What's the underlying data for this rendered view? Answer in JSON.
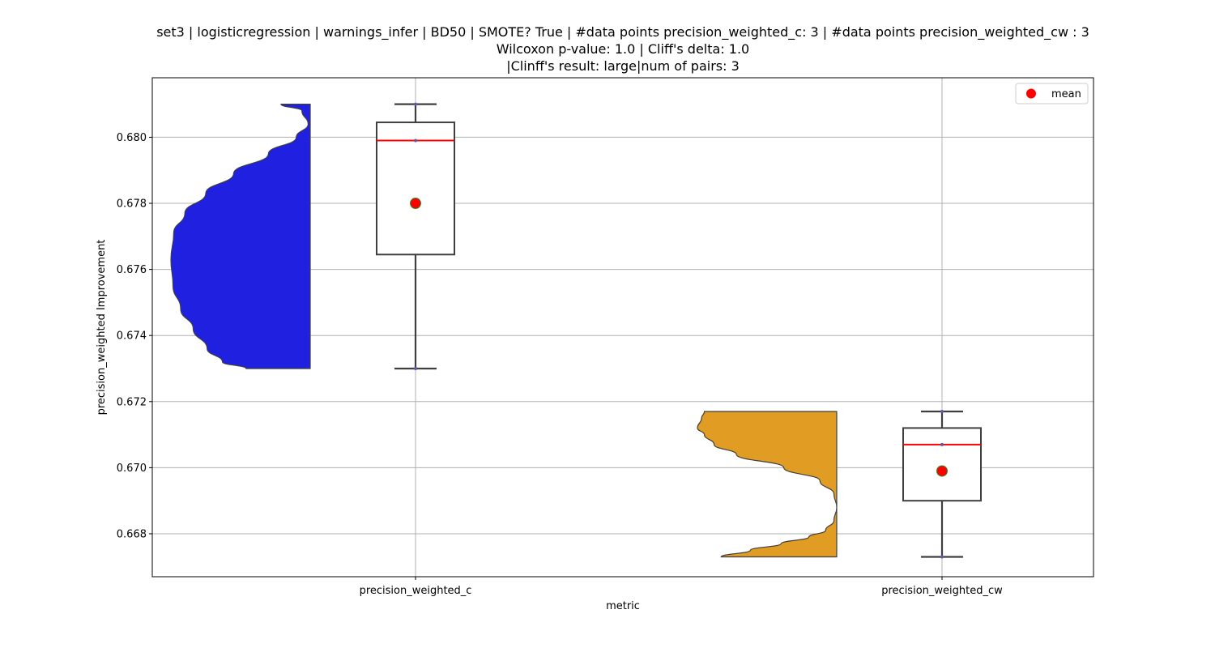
{
  "title_lines": [
    "set3 | logisticregression | warnings_infer | BD50 | SMOTE? True | #data points precision_weighted_c: 3 | #data points precision_weighted_cw : 3",
    "Wilcoxon p-value: 1.0 | Cliff's delta: 1.0",
    "|Clinff's result: large|num of pairs: 3"
  ],
  "chart_data": {
    "type": "violin_box",
    "xlabel": "metric",
    "ylabel": "precision_weighted Improvement",
    "categories": [
      "precision_weighted_c",
      "precision_weighted_cw"
    ],
    "ylim": [
      0.6667,
      0.6818
    ],
    "yticks": [
      0.668,
      0.67,
      0.672,
      0.674,
      0.676,
      0.678,
      0.68
    ],
    "ytick_labels": [
      "0.668",
      "0.670",
      "0.672",
      "0.674",
      "0.676",
      "0.678",
      "0.680"
    ],
    "grid": true,
    "legend": {
      "position": "top-right",
      "entries": [
        {
          "label": "mean",
          "color": "#ff0000",
          "marker": "circle"
        }
      ]
    },
    "series": [
      {
        "category": "precision_weighted_c",
        "violin_color": "#2020e0",
        "points": [
          0.673,
          0.6799,
          0.681
        ],
        "box": {
          "min": 0.673,
          "q1": 0.67645,
          "median": 0.6799,
          "q3": 0.68045,
          "max": 0.681
        },
        "mean": 0.678,
        "violin_profile": [
          [
            0.673,
            0.46
          ],
          [
            0.6732,
            0.63
          ],
          [
            0.6736,
            0.74
          ],
          [
            0.6742,
            0.84
          ],
          [
            0.6748,
            0.93
          ],
          [
            0.6755,
            0.985
          ],
          [
            0.6763,
            1.0
          ],
          [
            0.6771,
            0.98
          ],
          [
            0.6777,
            0.9
          ],
          [
            0.6783,
            0.75
          ],
          [
            0.6789,
            0.55
          ],
          [
            0.6795,
            0.3
          ],
          [
            0.68,
            0.1
          ],
          [
            0.6804,
            0.015
          ],
          [
            0.6808,
            0.06
          ],
          [
            0.681,
            0.21
          ]
        ]
      },
      {
        "category": "precision_weighted_cw",
        "violin_color": "#e09c23",
        "points": [
          0.6673,
          0.6707,
          0.6717
        ],
        "box": {
          "min": 0.6673,
          "q1": 0.669,
          "median": 0.6707,
          "q3": 0.6712,
          "max": 0.6717
        },
        "mean": 0.6699,
        "violin_profile": [
          [
            0.6673,
            0.83
          ],
          [
            0.6675,
            0.62
          ],
          [
            0.6677,
            0.4
          ],
          [
            0.6679,
            0.2
          ],
          [
            0.6681,
            0.08
          ],
          [
            0.6684,
            0.02
          ],
          [
            0.6688,
            0.0
          ],
          [
            0.6692,
            0.02
          ],
          [
            0.6696,
            0.12
          ],
          [
            0.67,
            0.38
          ],
          [
            0.6704,
            0.72
          ],
          [
            0.6707,
            0.88
          ],
          [
            0.671,
            0.95
          ],
          [
            0.6712,
            1.0
          ],
          [
            0.6715,
            0.97
          ],
          [
            0.6717,
            0.95
          ]
        ]
      }
    ]
  }
}
